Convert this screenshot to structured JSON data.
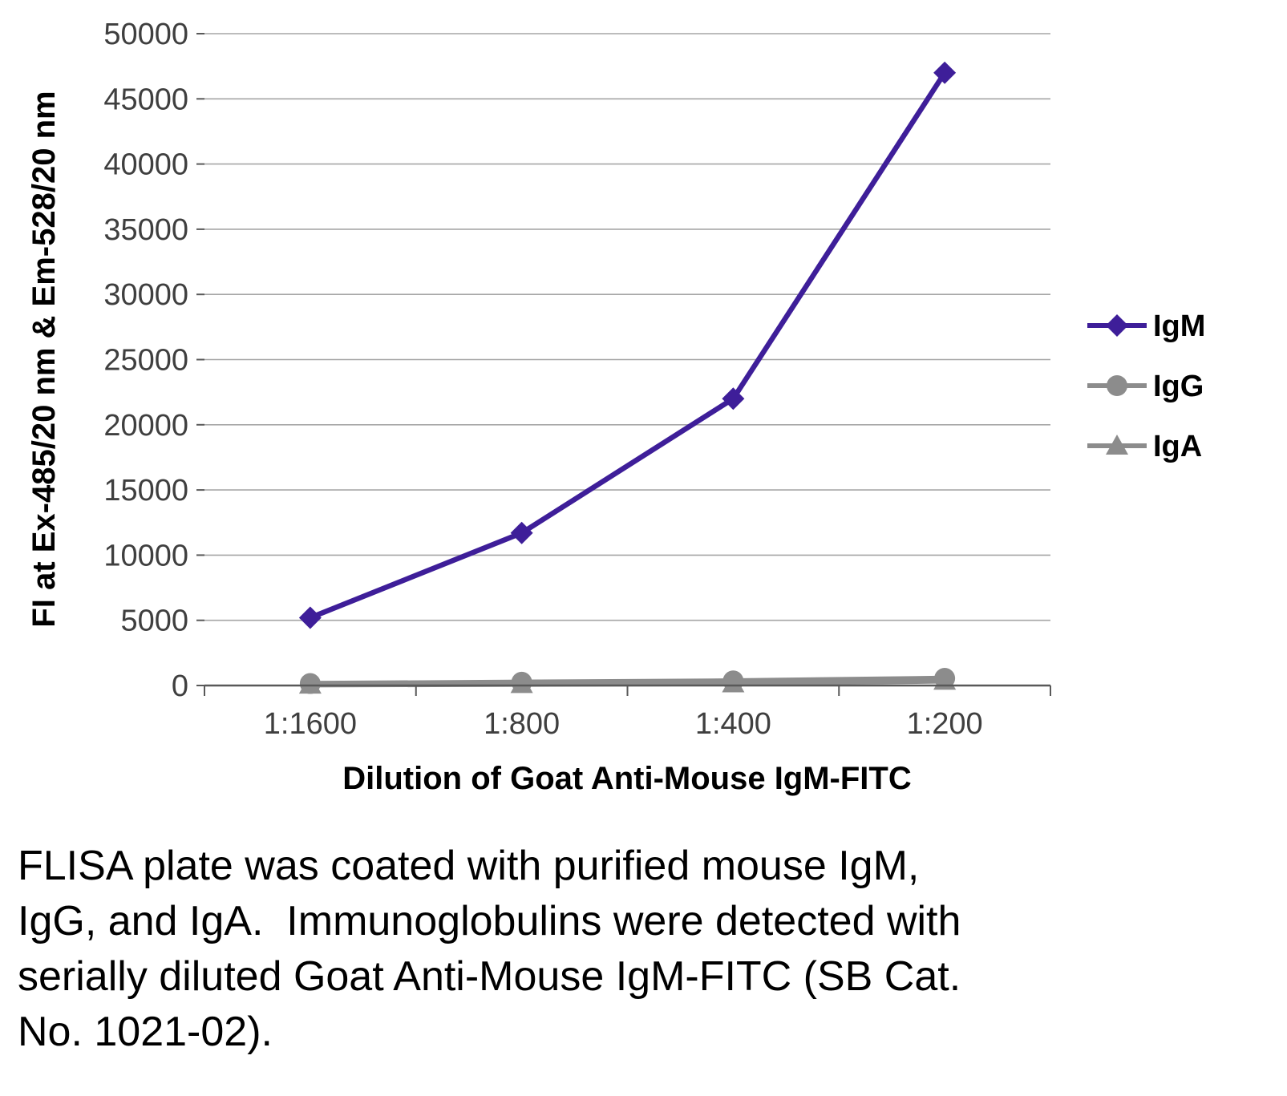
{
  "chart_data": {
    "type": "line",
    "title": "",
    "categories": [
      "1:1600",
      "1:800",
      "1:400",
      "1:200"
    ],
    "series": [
      {
        "name": "IgM",
        "marker": "diamond",
        "color": "#3e1e99",
        "values": [
          5200,
          11700,
          22000,
          47000
        ]
      },
      {
        "name": "IgG",
        "marker": "circle",
        "color": "#8c8c8c",
        "values": [
          150,
          250,
          350,
          550
        ]
      },
      {
        "name": "IgA",
        "marker": "triangle",
        "color": "#8c8c8c",
        "values": [
          50,
          100,
          150,
          350
        ]
      }
    ],
    "xlabel": "Dilution of Goat Anti-Mouse IgM-FITC",
    "ylabel": "FI at Ex-485/20 nm & Em-528/20 nm",
    "ylim": [
      0,
      50000
    ],
    "ytick_step": 5000,
    "grid": true,
    "gridline_color": "#a6a6a6",
    "axis_color": "#595959",
    "tick_label_color": "#3f3f3f",
    "legend_position": "right",
    "legend": [
      "IgM",
      "IgG",
      "IgA"
    ]
  },
  "caption": {
    "text": "FLISA plate was coated with purified mouse IgM, IgG, and IgA.  Immunoglobulins were detected with serially diluted Goat Anti-Mouse IgM-FITC (SB Cat. No. 1021-02)."
  }
}
